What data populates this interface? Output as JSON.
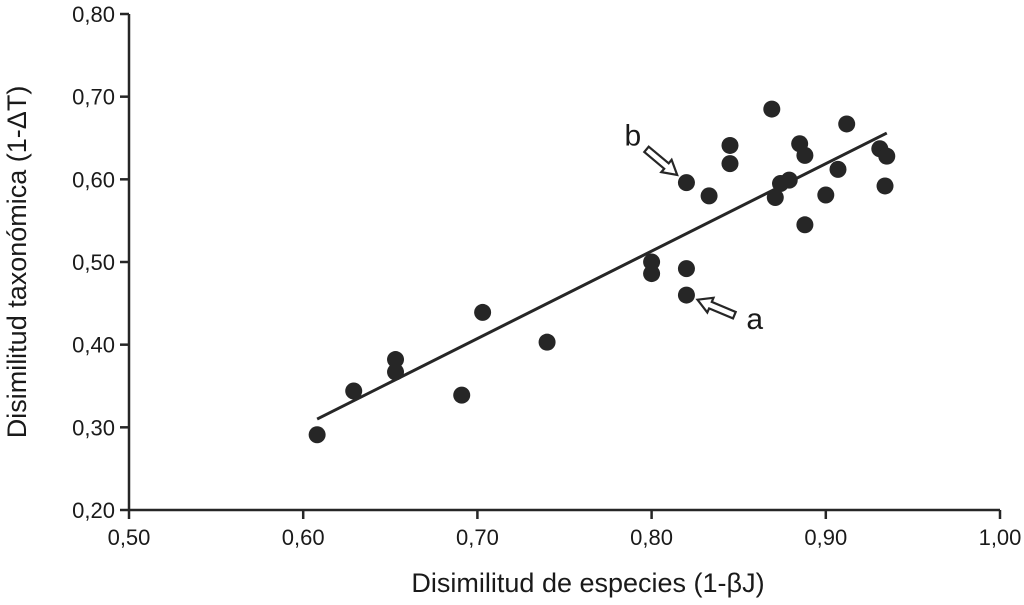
{
  "chart_data": {
    "type": "scatter",
    "xlabel": "Disimilitud de especies (1-βJ)",
    "ylabel": "Disimilitud taxonómica (1-ΔT)",
    "xlim": [
      0.5,
      1.0
    ],
    "ylim": [
      0.2,
      0.8
    ],
    "x_ticks": [
      0.5,
      0.6,
      0.7,
      0.8,
      0.9,
      1.0
    ],
    "y_ticks": [
      0.2,
      0.3,
      0.4,
      0.5,
      0.6,
      0.7,
      0.8
    ],
    "x_tick_labels": [
      "0,50",
      "0,60",
      "0,70",
      "0,80",
      "0,90",
      "1,00"
    ],
    "y_tick_labels": [
      "0,20",
      "0,30",
      "0,40",
      "0,50",
      "0,60",
      "0,70",
      "0,80"
    ],
    "grid": false,
    "points": [
      {
        "x": 0.608,
        "y": 0.291
      },
      {
        "x": 0.629,
        "y": 0.344
      },
      {
        "x": 0.653,
        "y": 0.382
      },
      {
        "x": 0.653,
        "y": 0.367
      },
      {
        "x": 0.691,
        "y": 0.339
      },
      {
        "x": 0.703,
        "y": 0.439
      },
      {
        "x": 0.74,
        "y": 0.403
      },
      {
        "x": 0.8,
        "y": 0.5
      },
      {
        "x": 0.8,
        "y": 0.486
      },
      {
        "x": 0.82,
        "y": 0.492
      },
      {
        "x": 0.82,
        "y": 0.46
      },
      {
        "x": 0.82,
        "y": 0.596
      },
      {
        "x": 0.833,
        "y": 0.58
      },
      {
        "x": 0.845,
        "y": 0.641
      },
      {
        "x": 0.845,
        "y": 0.619
      },
      {
        "x": 0.869,
        "y": 0.685
      },
      {
        "x": 0.871,
        "y": 0.578
      },
      {
        "x": 0.874,
        "y": 0.595
      },
      {
        "x": 0.879,
        "y": 0.599
      },
      {
        "x": 0.885,
        "y": 0.643
      },
      {
        "x": 0.888,
        "y": 0.629
      },
      {
        "x": 0.888,
        "y": 0.545
      },
      {
        "x": 0.9,
        "y": 0.581
      },
      {
        "x": 0.907,
        "y": 0.612
      },
      {
        "x": 0.912,
        "y": 0.667
      },
      {
        "x": 0.931,
        "y": 0.637
      },
      {
        "x": 0.934,
        "y": 0.592
      },
      {
        "x": 0.935,
        "y": 0.628
      }
    ],
    "trendline": {
      "x1": 0.608,
      "y1": 0.31,
      "x2": 0.935,
      "y2": 0.656
    },
    "annotations": [
      {
        "label": "a",
        "point": {
          "x": 0.82,
          "y": 0.46
        },
        "arrow_from": "lower-right"
      },
      {
        "label": "b",
        "point": {
          "x": 0.82,
          "y": 0.596
        },
        "arrow_from": "upper-left"
      }
    ],
    "colors": {
      "marker": "#262626",
      "line": "#262626",
      "axis": "#262626"
    }
  }
}
